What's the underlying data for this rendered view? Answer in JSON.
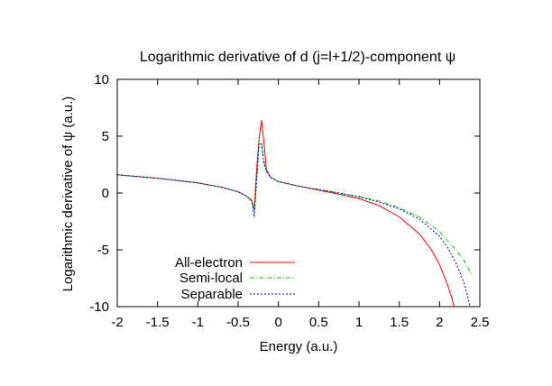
{
  "chart_data": {
    "type": "line",
    "title": "Logarithmic derivative of d (j=l+1/2)-component ψ",
    "xlabel": "Energy (a.u.)",
    "ylabel": "Logarithmic derivative of ψ (a.u.)",
    "xlim": [
      -2,
      2.5
    ],
    "ylim": [
      -10,
      10
    ],
    "xticks": [
      -2,
      -1.5,
      -1,
      -0.5,
      0,
      0.5,
      1,
      1.5,
      2,
      2.5
    ],
    "yticks": [
      -10,
      -5,
      0,
      5,
      10
    ],
    "grid": false,
    "legend_position": "bottom-left",
    "series": [
      {
        "name": "All-electron",
        "color": "#ff0000",
        "dash": "solid",
        "x": [
          -2.0,
          -1.5,
          -1.0,
          -0.7,
          -0.5,
          -0.4,
          -0.33,
          -0.3,
          -0.27,
          -0.24,
          -0.21,
          -0.18,
          -0.15,
          -0.1,
          0.0,
          0.25,
          0.5,
          0.75,
          1.0,
          1.25,
          1.5,
          1.75,
          1.9,
          2.0,
          2.1,
          2.15,
          2.18
        ],
        "y": [
          1.6,
          1.3,
          0.9,
          0.5,
          0.1,
          -0.25,
          -0.7,
          -1.4,
          2.0,
          4.8,
          6.4,
          4.5,
          2.1,
          1.4,
          1.0,
          0.6,
          0.25,
          -0.1,
          -0.5,
          -1.1,
          -2.1,
          -3.6,
          -5.0,
          -6.3,
          -8.1,
          -9.2,
          -10.0
        ]
      },
      {
        "name": "Semi-local",
        "color": "#00cc00",
        "dash": "dash-dot",
        "x": [
          -2.0,
          -1.5,
          -1.0,
          -0.7,
          -0.5,
          -0.4,
          -0.33,
          -0.3,
          -0.27,
          -0.24,
          -0.21,
          -0.18,
          -0.15,
          -0.1,
          0.0,
          0.25,
          0.5,
          0.75,
          1.0,
          1.25,
          1.5,
          1.75,
          2.0,
          2.1,
          2.2,
          2.3,
          2.4
        ],
        "y": [
          1.6,
          1.3,
          0.9,
          0.5,
          0.1,
          -0.25,
          -0.6,
          -1.6,
          1.2,
          4.7,
          4.3,
          2.8,
          2.0,
          1.4,
          1.0,
          0.6,
          0.3,
          0.0,
          -0.3,
          -0.7,
          -1.3,
          -2.1,
          -3.4,
          -4.2,
          -5.0,
          -5.9,
          -7.2
        ]
      },
      {
        "name": "Separable",
        "color": "#0000cc",
        "dash": "dotted",
        "x": [
          -2.0,
          -1.5,
          -1.0,
          -0.7,
          -0.5,
          -0.4,
          -0.33,
          -0.3,
          -0.27,
          -0.24,
          -0.21,
          -0.18,
          -0.15,
          -0.1,
          0.0,
          0.25,
          0.5,
          0.75,
          1.0,
          1.25,
          1.5,
          1.75,
          2.0,
          2.1,
          2.2,
          2.3,
          2.38
        ],
        "y": [
          1.6,
          1.3,
          0.9,
          0.5,
          0.1,
          -0.25,
          -0.7,
          -2.1,
          1.0,
          4.3,
          4.4,
          2.6,
          1.9,
          1.4,
          1.0,
          0.6,
          0.3,
          0.0,
          -0.35,
          -0.8,
          -1.4,
          -2.3,
          -3.8,
          -4.8,
          -6.1,
          -7.8,
          -10.0
        ]
      }
    ]
  }
}
